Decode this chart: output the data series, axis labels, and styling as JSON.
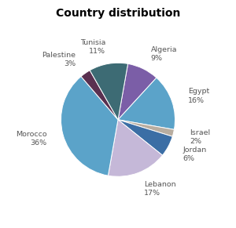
{
  "title": "Country distribution",
  "slices": [
    {
      "label": "Algeria",
      "pct": 9,
      "color": "#7b5ea7"
    },
    {
      "label": "Egypt",
      "pct": 16,
      "color": "#5ba3c9"
    },
    {
      "label": "Israel",
      "pct": 2,
      "color": "#b8ada0"
    },
    {
      "label": "Jordan",
      "pct": 6,
      "color": "#3b6ea5"
    },
    {
      "label": "Lebanon",
      "pct": 17,
      "color": "#c5b8d8"
    },
    {
      "label": "Morocco",
      "pct": 36,
      "color": "#5ba3c9"
    },
    {
      "label": "Palestine",
      "pct": 3,
      "color": "#5a3050"
    },
    {
      "label": "Tunisia",
      "pct": 11,
      "color": "#3d6b74"
    }
  ],
  "title_fontsize": 10,
  "label_fontsize": 6.8,
  "background_color": "#ffffff",
  "startangle": 80
}
